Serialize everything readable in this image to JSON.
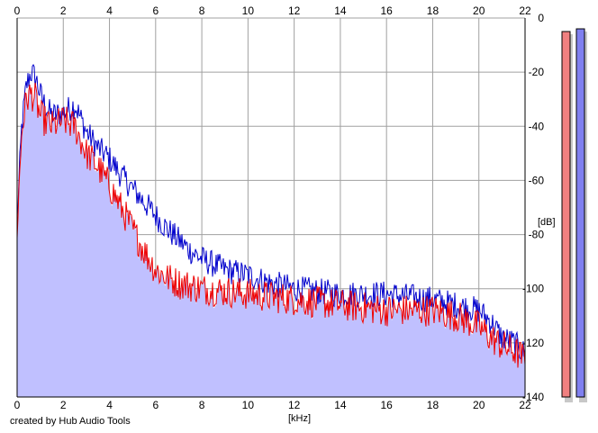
{
  "chart_data": {
    "type": "area",
    "x_unit_label": "[kHz]",
    "y_unit_label": "[dB]",
    "xlim": [
      0,
      22
    ],
    "ylim": [
      -140,
      0
    ],
    "x_ticks": [
      0,
      2,
      4,
      6,
      8,
      10,
      12,
      14,
      16,
      18,
      20,
      22
    ],
    "y_ticks": [
      0,
      -20,
      -40,
      -60,
      -80,
      -100,
      -120,
      -140
    ],
    "grid": true,
    "x_tick_positions": [
      "top",
      "bottom"
    ],
    "y_tick_position": "right",
    "colors": {
      "fill": "#c0c0ff",
      "series_1": "#0000cc",
      "series_2": "#ee0000"
    },
    "series": [
      {
        "color": "#0000cc",
        "x": [
          0,
          0.2,
          0.4,
          0.6,
          0.8,
          1.0,
          1.2,
          1.5,
          2.0,
          2.5,
          3.0,
          3.5,
          4.0,
          4.5,
          5.0,
          5.5,
          6.0,
          6.5,
          7.0,
          7.5,
          8.0,
          9.0,
          10.0,
          11.0,
          12.0,
          13.0,
          14.0,
          15.0,
          16.0,
          17.0,
          18.0,
          19.0,
          20.0,
          20.5,
          21.0,
          21.5,
          22.0
        ],
        "y": [
          -75,
          -40,
          -25,
          -20,
          -22,
          -28,
          -32,
          -36,
          -35,
          -32,
          -42,
          -48,
          -52,
          -58,
          -63,
          -68,
          -73,
          -78,
          -82,
          -86,
          -89,
          -93,
          -95,
          -98,
          -100,
          -101,
          -102,
          -102,
          -102,
          -103,
          -104,
          -106,
          -108,
          -112,
          -118,
          -120,
          -124
        ]
      },
      {
        "color": "#ee0000",
        "x": [
          0,
          0.2,
          0.4,
          0.6,
          0.8,
          1.0,
          1.2,
          1.5,
          2.0,
          2.5,
          3.0,
          3.5,
          4.0,
          4.5,
          5.0,
          5.5,
          6.0,
          6.5,
          7.0,
          7.5,
          8.0,
          9.0,
          10.0,
          11.0,
          12.0,
          13.0,
          14.0,
          15.0,
          16.0,
          17.0,
          18.0,
          19.0,
          20.0,
          20.5,
          21.0,
          21.5,
          22.0
        ],
        "y": [
          -78,
          -42,
          -30,
          -28,
          -30,
          -36,
          -38,
          -40,
          -38,
          -40,
          -50,
          -55,
          -62,
          -70,
          -78,
          -86,
          -93,
          -96,
          -98,
          -99,
          -100,
          -101,
          -102,
          -103,
          -104,
          -105,
          -106,
          -107,
          -108,
          -108,
          -108,
          -110,
          -114,
          -118,
          -121,
          -123,
          -126
        ]
      }
    ],
    "level_meters": [
      {
        "color": "#f08080",
        "level_db": -5
      },
      {
        "color": "#8080f0",
        "level_db": -4
      }
    ]
  },
  "footer": {
    "credit": "created by Hub Audio Tools"
  }
}
